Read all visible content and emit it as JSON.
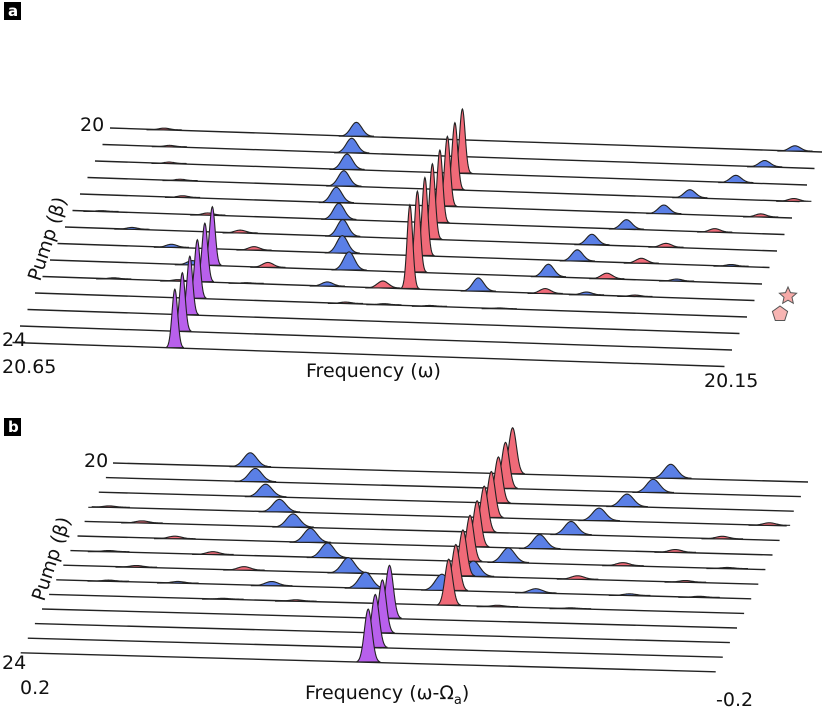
{
  "colors": {
    "blue": "#5a7fe6",
    "red": "#f06a78",
    "purple": "#b860ec",
    "star": "#f6aaa8",
    "pentagon": "#f7b5b3"
  },
  "chart_data": [
    {
      "type": "area",
      "subtype": "ridgeline",
      "panel_label": "a",
      "xlabel": "Frequency (ω)",
      "ylabel": "Pump (β)",
      "x_tick_labels": [
        "20.65",
        "20.15"
      ],
      "y_tick_labels": [
        "20",
        "24"
      ],
      "xlim": [
        20.65,
        20.15
      ],
      "ylim": [
        20,
        24
      ],
      "rows": 14,
      "peaks": [
        {
          "row": 0,
          "x": 20.612,
          "h": 0.12,
          "c": "red"
        },
        {
          "row": 0,
          "x": 20.477,
          "h": 1.0,
          "c": "blue"
        },
        {
          "row": 0,
          "x": 20.169,
          "h": 0.38,
          "c": "blue"
        },
        {
          "row": 1,
          "x": 20.603,
          "h": 0.1,
          "c": "red"
        },
        {
          "row": 1,
          "x": 20.475,
          "h": 1.05,
          "c": "blue"
        },
        {
          "row": 1,
          "x": 20.185,
          "h": 0.45,
          "c": "blue"
        },
        {
          "row": 2,
          "x": 20.598,
          "h": 0.1,
          "c": "red"
        },
        {
          "row": 2,
          "x": 20.473,
          "h": 1.1,
          "c": "blue"
        },
        {
          "row": 2,
          "x": 20.2,
          "h": 0.52,
          "c": "blue"
        },
        {
          "row": 3,
          "x": 20.585,
          "h": 0.1,
          "c": "red"
        },
        {
          "row": 3,
          "x": 20.47,
          "h": 1.1,
          "c": "blue"
        },
        {
          "row": 3,
          "x": 20.227,
          "h": 0.58,
          "c": "blue"
        },
        {
          "row": 3,
          "x": 20.154,
          "h": 0.2,
          "c": "red"
        },
        {
          "row": 4,
          "x": 20.578,
          "h": 0.12,
          "c": "red"
        },
        {
          "row": 4,
          "x": 20.47,
          "h": 1.1,
          "c": "blue"
        },
        {
          "row": 4,
          "x": 20.24,
          "h": 0.62,
          "c": "blue"
        },
        {
          "row": 4,
          "x": 20.172,
          "h": 0.22,
          "c": "red"
        },
        {
          "row": 5,
          "x": 20.63,
          "h": 0.06,
          "c": "blue"
        },
        {
          "row": 5,
          "x": 20.555,
          "h": 0.15,
          "c": "red"
        },
        {
          "row": 5,
          "x": 20.463,
          "h": 1.15,
          "c": "blue"
        },
        {
          "row": 5,
          "x": 20.261,
          "h": 0.68,
          "c": "blue"
        },
        {
          "row": 5,
          "x": 20.199,
          "h": 0.25,
          "c": "red"
        },
        {
          "row": 6,
          "x": 20.603,
          "h": 0.13,
          "c": "blue"
        },
        {
          "row": 6,
          "x": 20.527,
          "h": 0.2,
          "c": "red"
        },
        {
          "row": 6,
          "x": 20.455,
          "h": 1.2,
          "c": "blue"
        },
        {
          "row": 6,
          "x": 20.28,
          "h": 0.75,
          "c": "blue"
        },
        {
          "row": 6,
          "x": 20.228,
          "h": 0.28,
          "c": "red"
        },
        {
          "row": 7,
          "x": 20.57,
          "h": 0.22,
          "c": "blue"
        },
        {
          "row": 7,
          "x": 20.512,
          "h": 0.25,
          "c": "red"
        },
        {
          "row": 7,
          "x": 20.45,
          "h": 1.25,
          "c": "blue"
        },
        {
          "row": 7,
          "x": 20.285,
          "h": 0.8,
          "c": "blue"
        },
        {
          "row": 7,
          "x": 20.24,
          "h": 0.35,
          "c": "red"
        },
        {
          "row": 7,
          "x": 20.177,
          "h": 0.12,
          "c": "blue"
        },
        {
          "row": 8,
          "x": 20.55,
          "h": 0.3,
          "c": "blue"
        },
        {
          "row": 8,
          "x": 20.497,
          "h": 0.35,
          "c": "red"
        },
        {
          "row": 8,
          "x": 20.44,
          "h": 1.3,
          "c": "blue"
        },
        {
          "row": 8,
          "x": 20.3,
          "h": 0.9,
          "c": "blue"
        },
        {
          "row": 8,
          "x": 20.259,
          "h": 0.4,
          "c": "red"
        },
        {
          "row": 8,
          "x": 20.21,
          "h": 0.15,
          "c": "blue"
        },
        {
          "row": 9,
          "x": 20.6,
          "h": 0.08,
          "c": "blue"
        },
        {
          "row": 9,
          "x": 20.555,
          "h": 0.1,
          "c": "red"
        },
        {
          "row": 9,
          "x": 20.507,
          "h": 0.05,
          "c": "red"
        },
        {
          "row": 9,
          "x": 20.45,
          "h": 0.3,
          "c": "blue"
        },
        {
          "row": 9,
          "x": 20.411,
          "h": 0.5,
          "c": "red"
        },
        {
          "row": 9,
          "x": 20.344,
          "h": 0.95,
          "c": "blue"
        },
        {
          "row": 9,
          "x": 20.297,
          "h": 0.35,
          "c": "red"
        },
        {
          "row": 9,
          "x": 20.268,
          "h": 0.2,
          "c": "blue"
        },
        {
          "row": 9,
          "x": 20.234,
          "h": 0.1,
          "c": "red"
        },
        {
          "row": 10,
          "x": 20.432,
          "h": 0.1,
          "c": "red"
        },
        {
          "row": 10,
          "x": 20.405,
          "h": 0.08,
          "c": "blue"
        },
        {
          "row": 10,
          "x": 20.373,
          "h": 0.06,
          "c": "red"
        },
        {
          "row": 10,
          "x": 20.324,
          "h": 0.05,
          "c": "blue"
        }
      ],
      "series": [
        {
          "name": "",
          "color": "purple",
          "x": 20.536,
          "rows": [
            8,
            9,
            10,
            11,
            12,
            13
          ],
          "heights": [
            4.2,
            4.2,
            4.2,
            4.2,
            4.2,
            4.2
          ]
        },
        {
          "name": "",
          "color": "red",
          "x": 20.392,
          "rows": [
            2,
            3,
            4,
            5,
            6,
            7,
            8,
            9
          ],
          "heights": [
            4.6,
            4.8,
            5.0,
            5.2,
            5.4,
            5.6,
            5.8,
            6.0
          ]
        }
      ],
      "markers": [
        "star",
        "pentagon"
      ]
    },
    {
      "type": "area",
      "subtype": "ridgeline",
      "panel_label": "b",
      "xlabel": "Frequency (ω-Ω",
      "xlabel_sub": "a",
      "xlabel_tail": ")",
      "ylabel": "Pump (β)",
      "x_tick_labels": [
        "0.2",
        "-0.2"
      ],
      "y_tick_labels": [
        "20",
        "24"
      ],
      "xlim": [
        0.2,
        -0.2
      ],
      "ylim": [
        20,
        24
      ],
      "rows": 14,
      "peaks": [
        {
          "row": 0,
          "x": 0.121,
          "h": 1.0,
          "c": "blue"
        },
        {
          "row": 0,
          "x": -0.121,
          "h": 1.0,
          "c": "blue"
        },
        {
          "row": 1,
          "x": 0.114,
          "h": 0.95,
          "c": "blue"
        },
        {
          "row": 1,
          "x": -0.115,
          "h": 0.95,
          "c": "blue"
        },
        {
          "row": 2,
          "x": 0.104,
          "h": 0.9,
          "c": "blue"
        },
        {
          "row": 2,
          "x": -0.104,
          "h": 0.9,
          "c": "blue"
        },
        {
          "row": 3,
          "x": 0.19,
          "h": 0.1,
          "c": "red"
        },
        {
          "row": 3,
          "x": 0.092,
          "h": 0.9,
          "c": "blue"
        },
        {
          "row": 3,
          "x": -0.092,
          "h": 0.9,
          "c": "blue"
        },
        {
          "row": 3,
          "x": -0.19,
          "h": 0.18,
          "c": "red"
        },
        {
          "row": 4,
          "x": 0.167,
          "h": 0.15,
          "c": "red"
        },
        {
          "row": 4,
          "x": 0.08,
          "h": 0.95,
          "c": "blue"
        },
        {
          "row": 4,
          "x": -0.08,
          "h": 0.95,
          "c": "blue"
        },
        {
          "row": 4,
          "x": -0.167,
          "h": 0.18,
          "c": "red"
        },
        {
          "row": 5,
          "x": 0.144,
          "h": 0.18,
          "c": "red"
        },
        {
          "row": 5,
          "x": 0.066,
          "h": 1.0,
          "c": "blue"
        },
        {
          "row": 5,
          "x": -0.066,
          "h": 1.0,
          "c": "blue"
        },
        {
          "row": 5,
          "x": -0.144,
          "h": 0.2,
          "c": "red"
        },
        {
          "row": 6,
          "x": 0.178,
          "h": 0.08,
          "c": "blue"
        },
        {
          "row": 6,
          "x": 0.118,
          "h": 0.2,
          "c": "red"
        },
        {
          "row": 6,
          "x": 0.052,
          "h": 1.05,
          "c": "blue"
        },
        {
          "row": 6,
          "x": -0.052,
          "h": 1.05,
          "c": "blue"
        },
        {
          "row": 6,
          "x": -0.118,
          "h": 0.22,
          "c": "red"
        },
        {
          "row": 6,
          "x": -0.178,
          "h": 0.08,
          "c": "blue"
        },
        {
          "row": 7,
          "x": 0.158,
          "h": 0.12,
          "c": "red"
        },
        {
          "row": 7,
          "x": 0.096,
          "h": 0.25,
          "c": "red"
        },
        {
          "row": 7,
          "x": 0.036,
          "h": 1.1,
          "c": "blue"
        },
        {
          "row": 7,
          "x": -0.036,
          "h": 1.1,
          "c": "blue"
        },
        {
          "row": 7,
          "x": -0.096,
          "h": 0.25,
          "c": "red"
        },
        {
          "row": 7,
          "x": -0.158,
          "h": 0.12,
          "c": "red"
        },
        {
          "row": 8,
          "x": 0.17,
          "h": 0.08,
          "c": "blue"
        },
        {
          "row": 8,
          "x": 0.13,
          "h": 0.12,
          "c": "blue"
        },
        {
          "row": 8,
          "x": 0.076,
          "h": 0.3,
          "c": "blue"
        },
        {
          "row": 8,
          "x": 0.022,
          "h": 1.15,
          "c": "blue"
        },
        {
          "row": 8,
          "x": -0.022,
          "h": 1.15,
          "c": "blue"
        },
        {
          "row": 8,
          "x": -0.076,
          "h": 0.3,
          "c": "blue"
        },
        {
          "row": 8,
          "x": -0.13,
          "h": 0.12,
          "c": "blue"
        },
        {
          "row": 8,
          "x": -0.17,
          "h": 0.08,
          "c": "blue"
        },
        {
          "row": 9,
          "x": 0.1,
          "h": 0.06,
          "c": "red"
        },
        {
          "row": 9,
          "x": 0.058,
          "h": 0.1,
          "c": "red"
        },
        {
          "row": 9,
          "x": -0.058,
          "h": 0.1,
          "c": "red"
        },
        {
          "row": 9,
          "x": -0.1,
          "h": 0.06,
          "c": "red"
        }
      ],
      "series": [
        {
          "name": "",
          "color": "purple",
          "x": 0.0,
          "rows": [
            10,
            11,
            12,
            13
          ],
          "heights": [
            3.8,
            3.8,
            3.8,
            3.8
          ]
        },
        {
          "name": "",
          "color": "red",
          "x": -0.03,
          "rows": [
            0,
            1,
            2,
            3,
            4,
            5,
            6,
            7,
            8,
            9
          ],
          "heights": [
            3.3,
            3.3,
            3.3,
            3.3,
            3.3,
            3.3,
            3.3,
            3.3,
            3.3,
            3.3
          ]
        }
      ],
      "markers": []
    }
  ]
}
